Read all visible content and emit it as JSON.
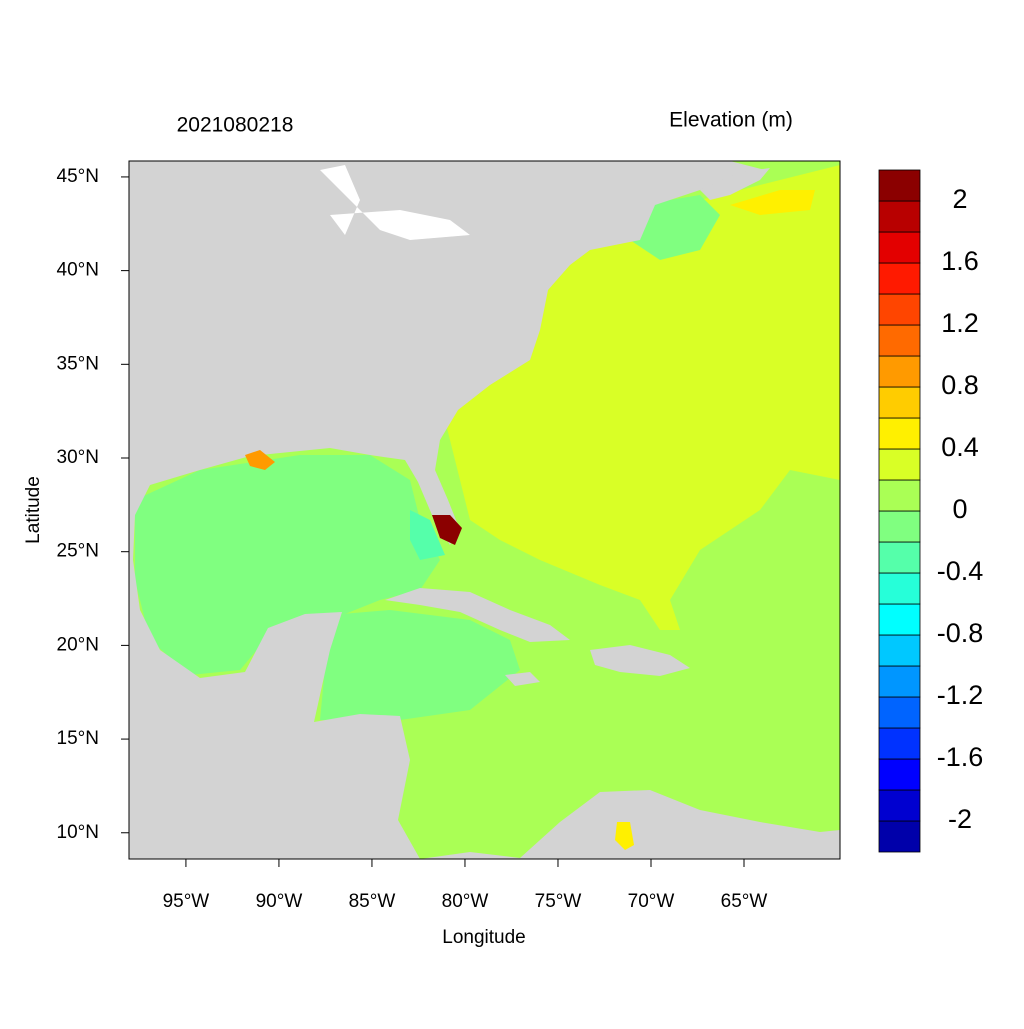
{
  "chart_data": {
    "type": "contour-map",
    "title": "2021080218",
    "colorbar_title": "Elevation (m)",
    "x_label": "Longitude",
    "y_label": "Latitude",
    "xlim": [
      -98.06,
      -59.84
    ],
    "ylim": [
      8.6,
      45.85
    ],
    "xticks": [
      {
        "value": -95,
        "label": "95°W"
      },
      {
        "value": -90,
        "label": "90°W"
      },
      {
        "value": -85,
        "label": "85°W"
      },
      {
        "value": -80,
        "label": "80°W"
      },
      {
        "value": -75,
        "label": "75°W"
      },
      {
        "value": -70,
        "label": "70°W"
      },
      {
        "value": -65,
        "label": "65°W"
      }
    ],
    "yticks": [
      {
        "value": 45,
        "label": "45°N"
      },
      {
        "value": 40,
        "label": "40°N"
      },
      {
        "value": 35,
        "label": "35°N"
      },
      {
        "value": 30,
        "label": "30°N"
      },
      {
        "value": 25,
        "label": "25°N"
      },
      {
        "value": 20,
        "label": "20°N"
      },
      {
        "value": 15,
        "label": "15°N"
      },
      {
        "value": 10,
        "label": "10°N"
      }
    ],
    "colorbar": {
      "levels": [
        -2.2,
        -2,
        -1.8,
        -1.6,
        -1.4,
        -1.2,
        -1,
        -0.8,
        -0.6,
        -0.4,
        -0.2,
        0,
        0.2,
        0.4,
        0.6,
        0.8,
        1,
        1.2,
        1.4,
        1.6,
        1.8,
        2,
        2.2
      ],
      "colors": [
        "#0000AA",
        "#0000D0",
        "#0000FF",
        "#0032FF",
        "#0064FF",
        "#0096FF",
        "#00C8FF",
        "#00FFFF",
        "#26FFD9",
        "#55FFAA",
        "#80FF80",
        "#AAFF55",
        "#D9FF26",
        "#FFF000",
        "#FFCC00",
        "#FF9A00",
        "#FF6A00",
        "#FF4500",
        "#FF1A00",
        "#E30000",
        "#B80000",
        "#8B0000"
      ],
      "ticks": [
        2,
        1.6,
        1.2,
        0.8,
        0.4,
        0,
        -0.4,
        -0.8,
        -1.2,
        -1.6,
        -2
      ]
    }
  }
}
